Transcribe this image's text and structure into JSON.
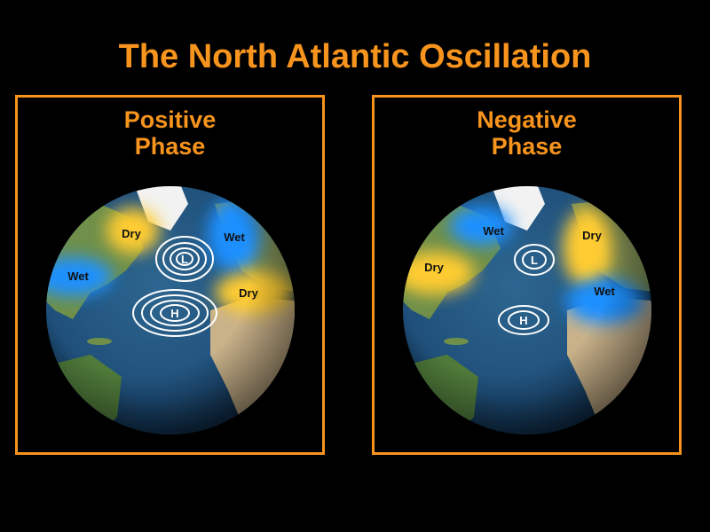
{
  "title": "The North Atlantic Oscillation",
  "colors": {
    "accent": "#f7941d",
    "wet": "#1e90ff",
    "dry": "#ffcc33",
    "ocean": "#1f4f7a",
    "land": "#6f8f4a",
    "desert": "#c9b28a",
    "ice": "#f2f2f2"
  },
  "panels": {
    "positive": {
      "title_line1": "Positive",
      "title_line2": "Phase",
      "labels": {
        "dry_nw": "Dry",
        "wet_ne": "Wet",
        "wet_w": "Wet",
        "dry_se": "Dry",
        "low": "L",
        "high": "H"
      }
    },
    "negative": {
      "title_line1": "Negative",
      "title_line2": "Phase",
      "labels": {
        "wet_nw": "Wet",
        "dry_ne": "Dry",
        "dry_w": "Dry",
        "wet_se": "Wet",
        "low": "L",
        "high": "H"
      }
    }
  }
}
